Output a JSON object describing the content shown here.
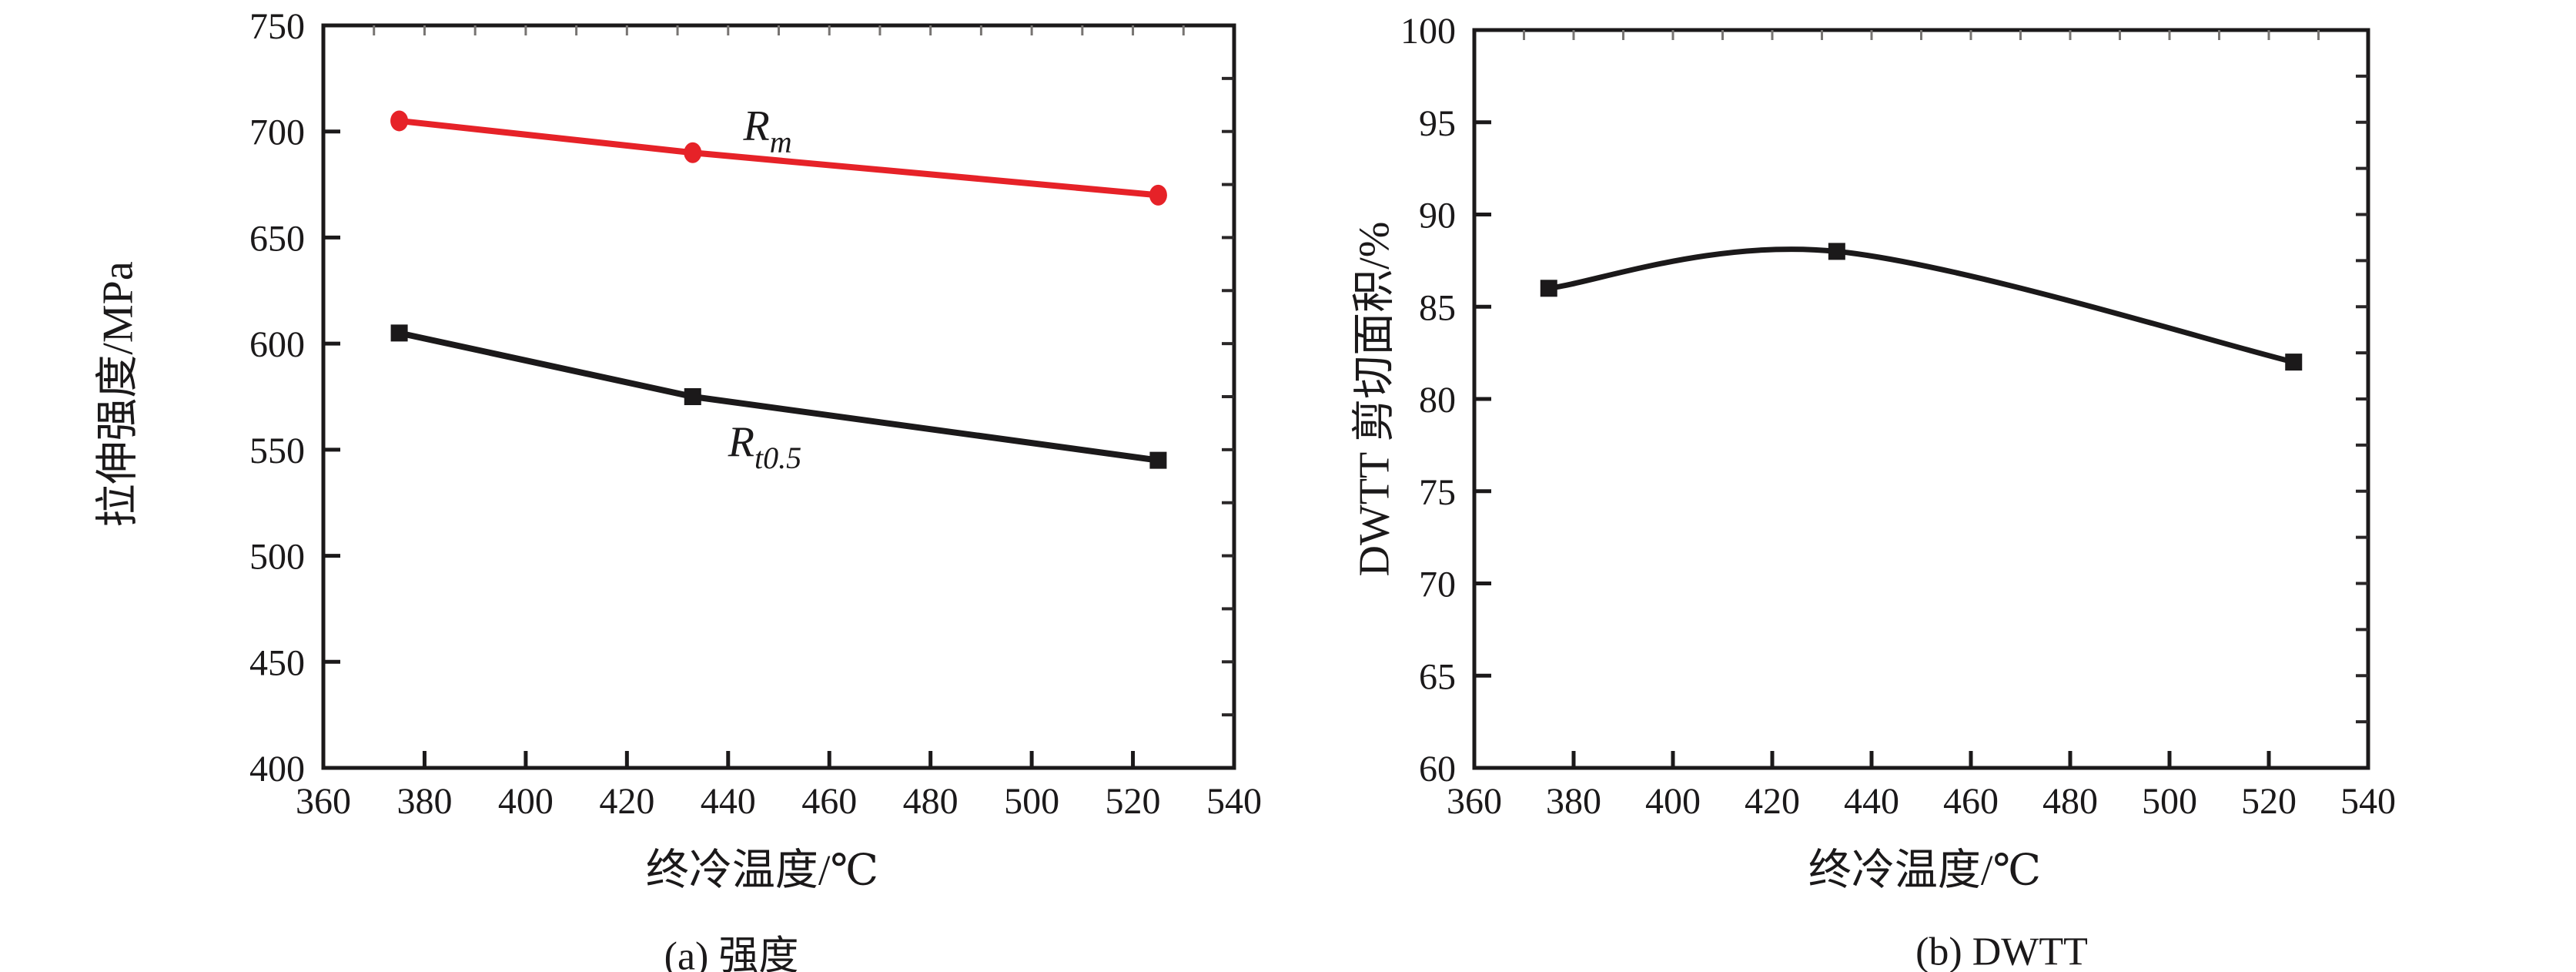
{
  "figure_background": "#ffffff",
  "text_color": "#1b191a",
  "chart_data": [
    {
      "type": "line",
      "caption": "(a) 强度",
      "xlabel": "终冷温度/℃",
      "ylabel": "拉伸强度/MPa",
      "xlim": [
        360,
        540
      ],
      "xtick_step": 20,
      "xminor_step": 10,
      "ylim": [
        400,
        750
      ],
      "ytick_step": 50,
      "yminor_step": 25,
      "grid": "off",
      "legend_position": "inline-labels",
      "x": [
        375,
        433,
        525
      ],
      "series": [
        {
          "name": "Rm",
          "label_main": "R",
          "label_sub": "m",
          "color": "#e62228",
          "marker": "circle",
          "smooth": false,
          "values": [
            705,
            690,
            670
          ],
          "label_anchor": {
            "x": 443,
            "y": 696
          }
        },
        {
          "name": "Rt0.5",
          "label_main": "R",
          "label_sub": "t0.5",
          "color": "#1b191a",
          "marker": "square",
          "smooth": false,
          "values": [
            605,
            575,
            545
          ],
          "label_anchor": {
            "x": 440,
            "y": 547
          }
        }
      ]
    },
    {
      "type": "line",
      "caption": "(b) DWTT",
      "xlabel": "终冷温度/℃",
      "ylabel": "DWTT 剪切面积/%",
      "xlim": [
        360,
        540
      ],
      "xtick_step": 20,
      "xminor_step": 10,
      "ylim": [
        60,
        100
      ],
      "ytick_step": 5,
      "yminor_step": 2.5,
      "grid": "off",
      "legend_position": "none",
      "x": [
        375,
        433,
        525
      ],
      "series": [
        {
          "name": "DWTT",
          "color": "#1b191a",
          "marker": "square",
          "smooth": true,
          "values": [
            86,
            88,
            82
          ]
        }
      ]
    }
  ]
}
